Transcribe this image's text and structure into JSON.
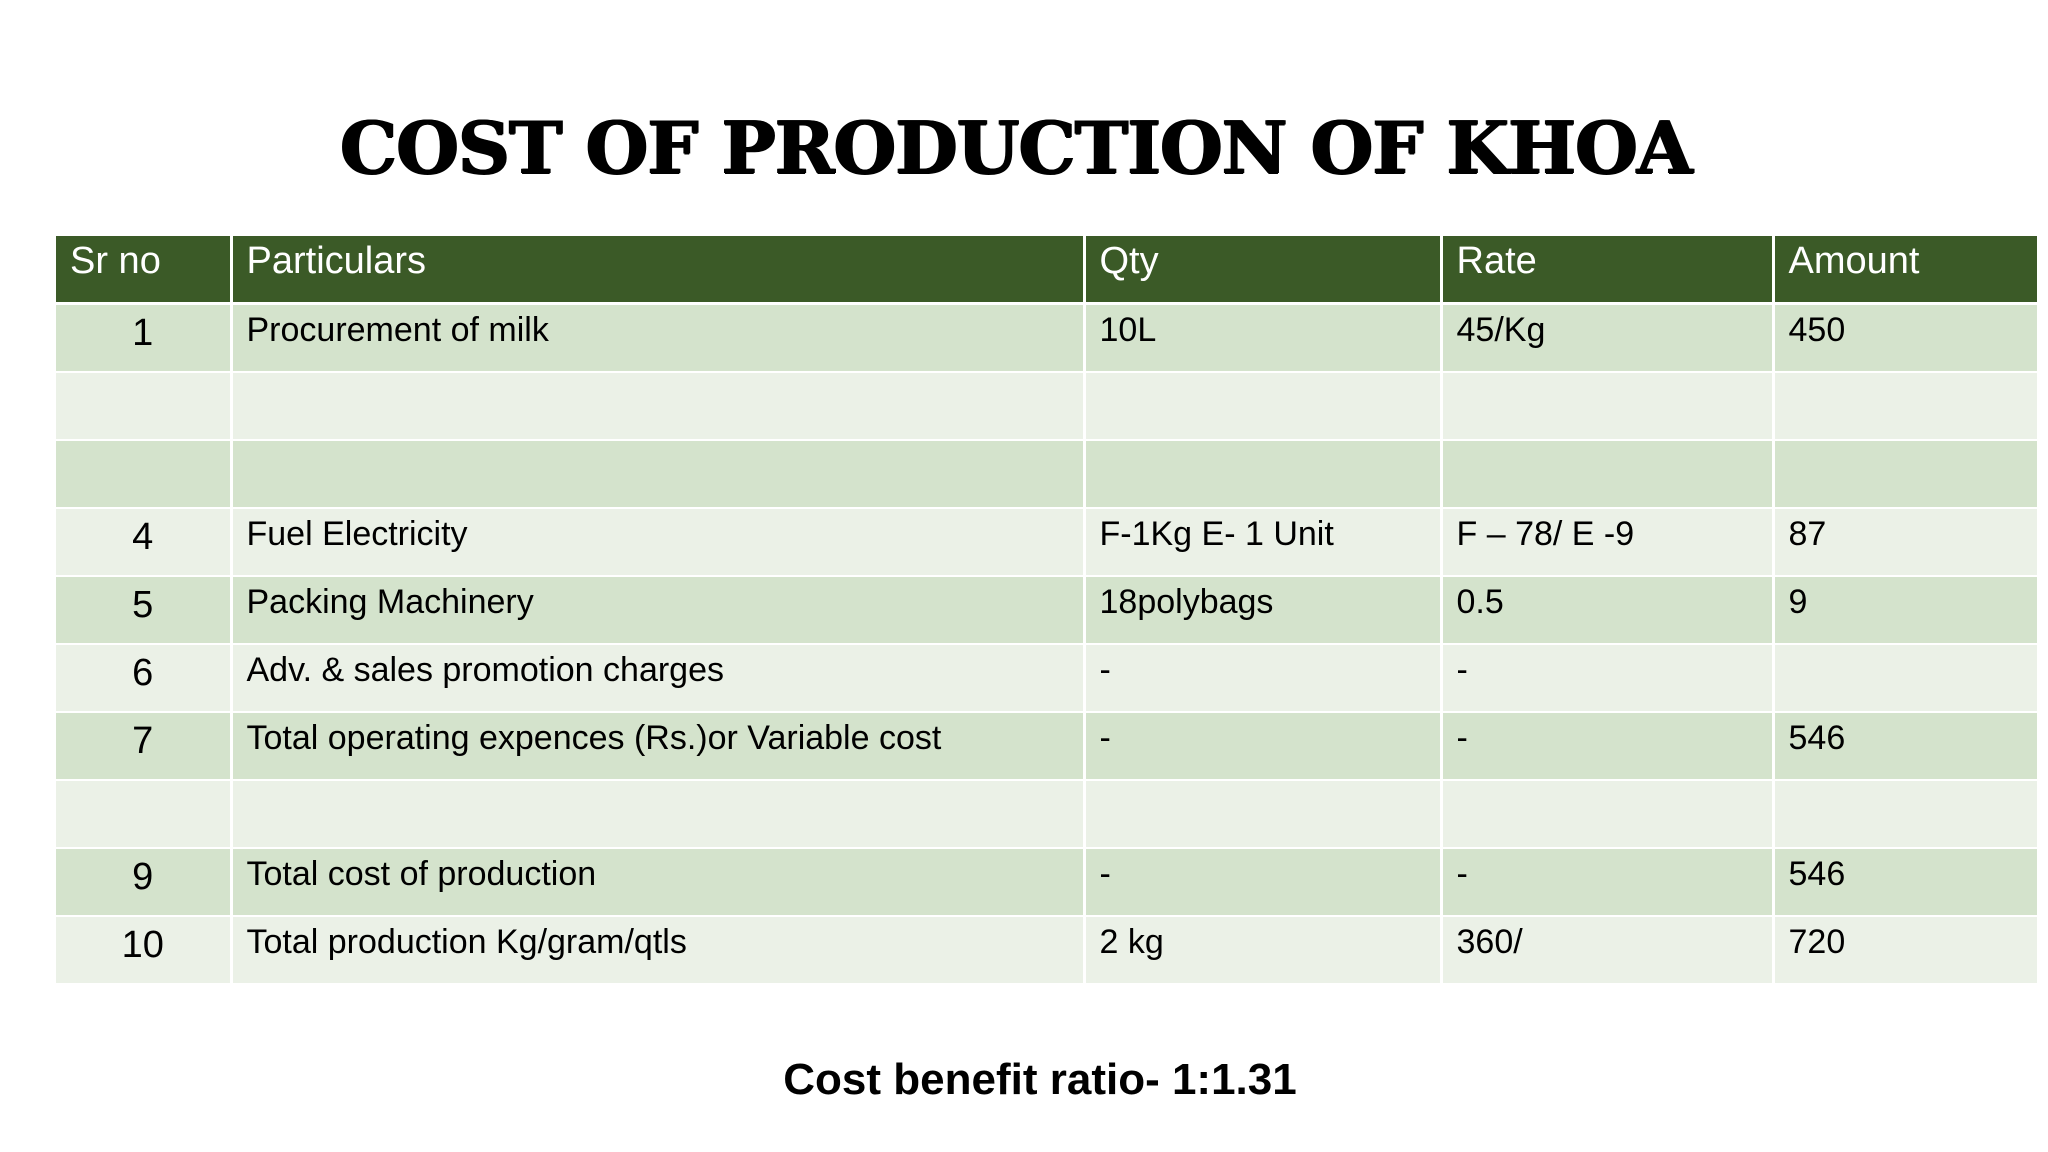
{
  "title": "COST OF PRODUCTION OF KHOA",
  "table": {
    "headers": [
      "Sr no",
      "Particulars",
      "Qty",
      "Rate",
      "Amount"
    ],
    "rows": [
      {
        "sr": "1",
        "particulars": "Procurement of milk",
        "qty": "10L",
        "rate": "45/Kg",
        "amount": "450"
      },
      {
        "sr": "",
        "particulars": "",
        "qty": "",
        "rate": "",
        "amount": ""
      },
      {
        "sr": "",
        "particulars": "",
        "qty": "",
        "rate": "",
        "amount": ""
      },
      {
        "sr": "4",
        "particulars": "Fuel Electricity",
        "qty": "F-1Kg  E- 1 Unit",
        "rate": "F – 78/  E -9",
        "amount": "87"
      },
      {
        "sr": "5",
        "particulars": "Packing Machinery",
        "qty": "18polybags",
        "rate": "0.5",
        "amount": "9"
      },
      {
        "sr": "6",
        "particulars": "Adv. & sales promotion charges",
        "qty": "-",
        "rate": "-",
        "amount": ""
      },
      {
        "sr": "7",
        "particulars": "Total operating expences (Rs.)or Variable cost",
        "qty": "-",
        "rate": "-",
        "amount": "546"
      },
      {
        "sr": "",
        "particulars": "",
        "qty": "",
        "rate": "",
        "amount": ""
      },
      {
        "sr": "9",
        "particulars": "Total cost of production",
        "qty": "-",
        "rate": "-",
        "amount": "546"
      },
      {
        "sr": "10",
        "particulars": "Total production Kg/gram/qtls",
        "qty": "2 kg",
        "rate": "360/",
        "amount": "720"
      }
    ]
  },
  "footer": {
    "ratio_text": "Cost benefit ratio- 1:1.31"
  }
}
